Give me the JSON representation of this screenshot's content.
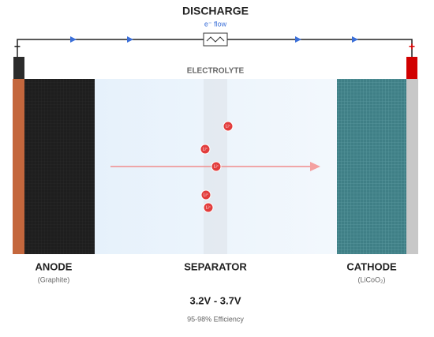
{
  "header": {
    "title": "DISCHARGE",
    "subtitle": "e⁻ flow"
  },
  "terminals": {
    "negative": "−",
    "positive": "+"
  },
  "electrolyte": {
    "label": "ELECTROLYTE"
  },
  "components": [
    {
      "name": "ANODE",
      "material": "(Graphite)"
    },
    {
      "name": "SEPARATOR"
    },
    {
      "name": "CATHODE",
      "material": "(LiCoO₂)"
    }
  ],
  "ions": [
    {
      "label": "Li⁺"
    },
    {
      "label": "Li⁺"
    },
    {
      "label": "Li⁺"
    },
    {
      "label": "Li⁺"
    },
    {
      "label": "Li⁺"
    }
  ],
  "specs": {
    "voltage": "3.2V - 3.7V",
    "efficiency": "95-98% Efficiency"
  }
}
